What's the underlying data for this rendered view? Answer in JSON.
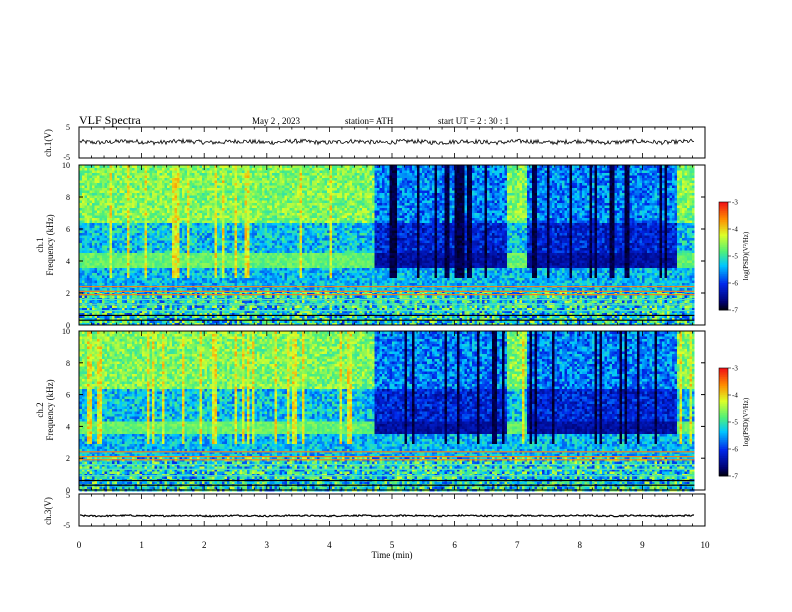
{
  "header": {
    "title": "VLF  Spectra",
    "date": "May 2  , 2023",
    "station": "station= ATH",
    "start": "start  UT  =   2  : 30 : 1"
  },
  "chart_data": [
    {
      "id": "ch1-waveform",
      "type": "line",
      "ylabel": "ch.1(V)",
      "yticks": [
        "5",
        "-5"
      ],
      "ylim": [
        -5,
        5
      ],
      "xlim": [
        0,
        10
      ],
      "x_end": 9.83,
      "mean": 0.2,
      "amplitude": 0.7
    },
    {
      "id": "ch1-spectrogram",
      "type": "heatmap",
      "ylabel": "ch.1\nFrequency (kHz)",
      "yticks": [
        "0",
        "2",
        "4",
        "6",
        "8",
        "10"
      ],
      "ylim": [
        0,
        10
      ],
      "xlim": [
        0,
        10
      ],
      "x_end": 9.83,
      "colorbar": {
        "label": "log(PSD)(V²/Hz)",
        "ticks": [
          "-3",
          "-4",
          "-5",
          "-6",
          "-7"
        ],
        "range": [
          -7,
          -3
        ]
      },
      "quiet_intervals_min": [
        [
          4.72,
          6.82
        ],
        [
          7.15,
          9.55
        ]
      ],
      "band_kHz": [
        3.6,
        4.6
      ]
    },
    {
      "id": "ch2-spectrogram",
      "type": "heatmap",
      "ylabel": "ch.2\nFrequency (kHz)",
      "yticks": [
        "0",
        "2",
        "4",
        "6",
        "8",
        "10"
      ],
      "ylim": [
        0,
        10
      ],
      "xlim": [
        0,
        10
      ],
      "x_end": 9.83,
      "colorbar": {
        "label": "log(PSD)(V²/Hz)",
        "ticks": [
          "-3",
          "-4",
          "-5",
          "-6",
          "-7"
        ],
        "range": [
          -7,
          -3
        ]
      },
      "quiet_intervals_min": [
        [
          4.72,
          6.82
        ],
        [
          7.15,
          9.55
        ]
      ],
      "band_kHz": [
        3.6,
        4.4
      ]
    },
    {
      "id": "ch3-waveform",
      "type": "line",
      "ylabel": "ch.3(V)",
      "yticks": [
        "5",
        "-5"
      ],
      "ylim": [
        -5,
        5
      ],
      "xlim": [
        0,
        10
      ],
      "x_end": 9.83,
      "mean": -1.8,
      "amplitude": 0.25
    }
  ],
  "xaxis": {
    "label": "Time  (min)",
    "ticks": [
      "0",
      "1",
      "2",
      "3",
      "4",
      "5",
      "6",
      "7",
      "8",
      "9",
      "10"
    ]
  }
}
